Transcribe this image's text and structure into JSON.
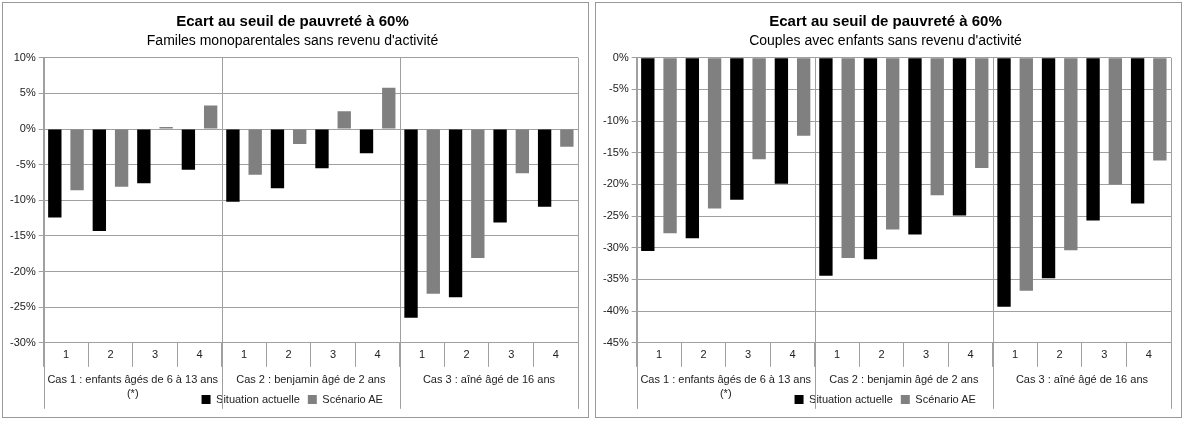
{
  "chart_data": [
    {
      "type": "bar",
      "title": "Ecart au seuil de pauvreté à 60%",
      "subtitle": "Familes monoparentales sans revenu d'activité",
      "categories": [
        "1",
        "2",
        "3",
        "4",
        "1",
        "2",
        "3",
        "4",
        "1",
        "2",
        "3",
        "4"
      ],
      "annotations": [
        "Cas 1 : enfants âgés de 6 à 13 ans (*)",
        "Cas 2 : benjamin âgé de 2 ans",
        "Cas 3 : aîné âgé de 16 ans"
      ],
      "series": [
        {
          "name": "Situation actuelle",
          "color": "#000000",
          "values": [
            -12.4,
            -14.3,
            -7.6,
            -5.7,
            -10.2,
            -8.3,
            -5.5,
            -3.4,
            -26.5,
            -23.6,
            -13.1,
            -10.9
          ]
        },
        {
          "name": "Scénario AE",
          "color": "#808080",
          "values": [
            -8.6,
            -8.1,
            0.3,
            3.3,
            -6.4,
            -2.1,
            2.5,
            5.8,
            -23.1,
            -18.1,
            -6.2,
            -2.5
          ]
        }
      ],
      "ylim": [
        -30,
        10
      ],
      "yticks": [
        {
          "value": -30,
          "label": "-30%"
        },
        {
          "value": -25,
          "label": "-25%"
        },
        {
          "value": -20,
          "label": "-20%"
        },
        {
          "value": -15,
          "label": "-15%"
        },
        {
          "value": -10,
          "label": "-10%"
        },
        {
          "value": -5,
          "label": "-5%"
        },
        {
          "value": 0,
          "label": "0%"
        },
        {
          "value": 5,
          "label": "5%"
        },
        {
          "value": 10,
          "label": "10%"
        }
      ],
      "grid": "y",
      "legend": "bottom"
    },
    {
      "type": "bar",
      "title": "Ecart au seuil de pauvreté à 60%",
      "subtitle": "Couples avec enfants sans revenu d'activité",
      "categories": [
        "1",
        "2",
        "3",
        "4",
        "1",
        "2",
        "3",
        "4",
        "1",
        "2",
        "3",
        "4"
      ],
      "annotations": [
        "Cas 1 : enfants âgés de 6 à 13 ans (*)",
        "Cas 2 : benjamin âgé de 2 ans",
        "Cas 3 : aîné âgé de 16 ans"
      ],
      "series": [
        {
          "name": "Situation actuelle",
          "color": "#000000",
          "values": [
            -30.5,
            -28.5,
            -22.4,
            -19.9,
            -34.4,
            -31.8,
            -27.9,
            -24.9,
            -39.3,
            -34.8,
            -25.7,
            -23.0
          ]
        },
        {
          "name": "Scénario AE",
          "color": "#808080",
          "values": [
            -27.7,
            -23.8,
            -16.0,
            -12.3,
            -31.6,
            -27.1,
            -21.7,
            -17.4,
            -36.8,
            -30.4,
            -20.0,
            -16.2
          ]
        }
      ],
      "ylim": [
        -45,
        0
      ],
      "yticks": [
        {
          "value": -45,
          "label": "-45%"
        },
        {
          "value": -40,
          "label": "-40%"
        },
        {
          "value": -35,
          "label": "-35%"
        },
        {
          "value": -30,
          "label": "-30%"
        },
        {
          "value": -25,
          "label": "-25%"
        },
        {
          "value": -20,
          "label": "-20%"
        },
        {
          "value": -15,
          "label": "-15%"
        },
        {
          "value": -10,
          "label": "-10%"
        },
        {
          "value": -5,
          "label": "-5%"
        },
        {
          "value": 0,
          "label": "0%"
        }
      ],
      "grid": "y",
      "legend": "bottom"
    }
  ]
}
